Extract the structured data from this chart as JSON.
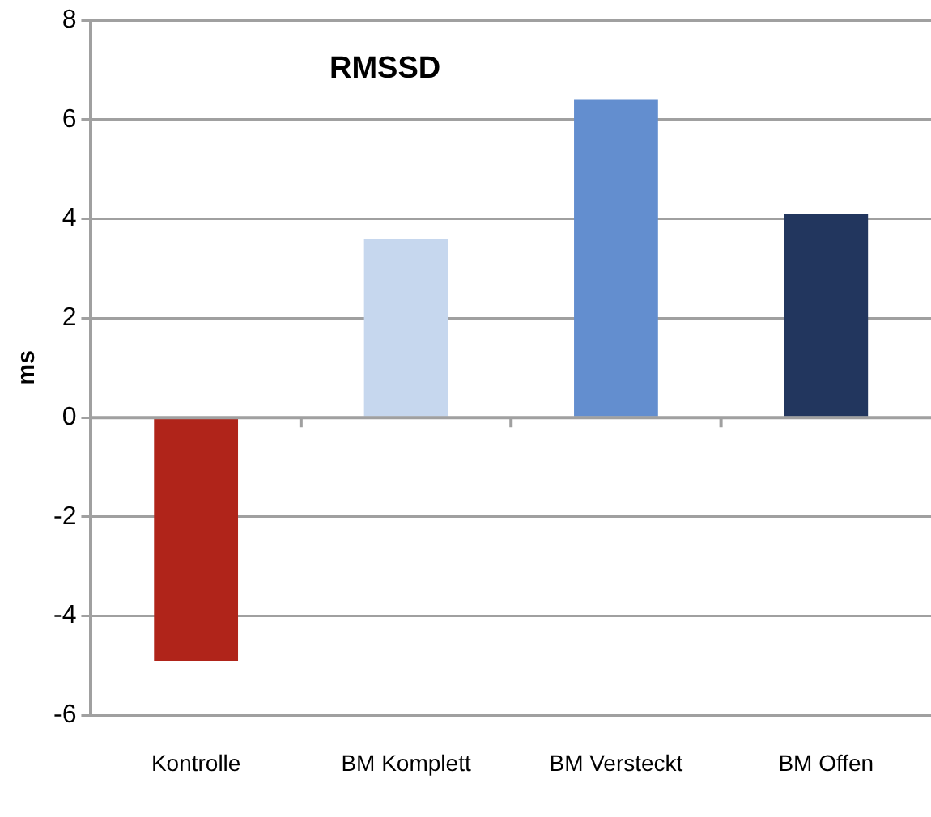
{
  "chart_data": {
    "type": "bar",
    "title": "RMSSD",
    "ylabel": "ms",
    "categories": [
      "Kontrolle",
      "BM Komplett",
      "BM Versteckt",
      "BM Offen"
    ],
    "values": [
      -4.9,
      3.6,
      6.4,
      4.1
    ],
    "colors": [
      "#b0241a",
      "#c6d7ee",
      "#638ecf",
      "#22365e"
    ],
    "ylim": [
      -6,
      8
    ],
    "yticks": [
      -6,
      -4,
      -2,
      0,
      2,
      4,
      6,
      8
    ],
    "grid": "y",
    "legend": false
  }
}
